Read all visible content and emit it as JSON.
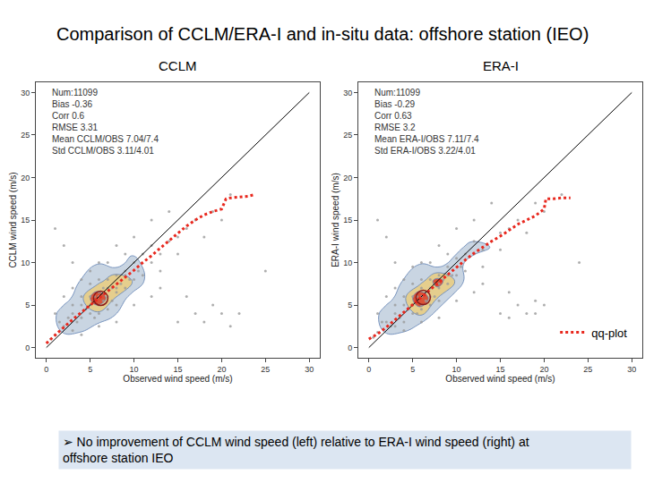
{
  "title": "Comparison of CCLM/ERA-I and in-situ data: offshore station (IEO)",
  "note": [
    "➢ No improvement of CCLM wind speed (left) relative to ERA-I wind speed (right) at",
    "offshore station IEO"
  ],
  "chart_data": [
    {
      "type": "scatter",
      "title": "CCLM",
      "x_label": "Observed wind speed (m/s)",
      "y_label": "CCLM wind speed (m/s)",
      "xlim": [
        -1.2,
        31.2
      ],
      "ylim": [
        -1.2,
        31.2
      ],
      "xticks": [
        0,
        5,
        10,
        15,
        20,
        25,
        30
      ],
      "yticks": [
        0,
        5,
        10,
        15,
        20,
        25,
        30
      ],
      "grid": false,
      "annotations": [
        "Num:11099",
        "Bias -0.36",
        "Corr 0.6",
        "RMSE 3.31",
        "Mean CCLM/OBS 7.04/7.4",
        "Std CCLM/OBS 3.11/4.01"
      ],
      "series": [
        {
          "type": "density_scatter",
          "color": "#9a9a9a",
          "marker": "dot",
          "x": [
            2,
            2.5,
            3,
            3,
            3.5,
            4,
            4,
            4.5,
            5,
            5,
            5.5,
            5.5,
            6,
            6,
            6,
            6.5,
            6.5,
            7,
            7,
            7,
            7.5,
            7.5,
            8,
            8,
            8,
            8.5,
            9,
            9,
            9.5,
            10,
            10,
            10.5,
            11,
            11,
            12,
            12,
            13,
            13,
            14,
            15,
            15,
            16,
            17,
            18,
            1,
            1.5,
            0.5,
            1,
            2,
            3,
            4,
            5,
            6,
            8,
            10,
            12,
            14,
            4,
            6,
            8,
            10,
            12,
            15,
            17,
            18,
            19,
            20,
            21,
            16,
            22,
            2,
            1,
            3,
            20,
            19,
            25,
            21,
            13,
            9,
            7,
            5,
            4,
            3,
            6,
            7,
            8,
            9,
            5,
            6,
            5.5
          ],
          "y": [
            2.5,
            3.5,
            2,
            4,
            3,
            5,
            3.5,
            4.5,
            6,
            4,
            5.5,
            3.5,
            6.5,
            5,
            4,
            7,
            5.5,
            6,
            8,
            4.5,
            7,
            5.5,
            8.5,
            6.5,
            5,
            7.5,
            9,
            7,
            8,
            10,
            8,
            9,
            11,
            8.5,
            10,
            12,
            11,
            9,
            12.5,
            13,
            11,
            14,
            15,
            13,
            1.5,
            3,
            1,
            4,
            6,
            7,
            8,
            9,
            10,
            12,
            13,
            15,
            16,
            1.5,
            2.5,
            3,
            5,
            6,
            3,
            4,
            3,
            5,
            4,
            2.5,
            6,
            4,
            12,
            14,
            10,
            15,
            16,
            9,
            18,
            7,
            11,
            10,
            7.5,
            6,
            5,
            8,
            7,
            7,
            8.5,
            5,
            6,
            6
          ]
        },
        {
          "type": "line",
          "color": "#000000",
          "line_style": "solid",
          "x": [
            0,
            30
          ],
          "y": [
            0,
            30
          ]
        },
        {
          "type": "line",
          "color": "#e8281e",
          "line_style": "dotted",
          "x": [
            0,
            1,
            2,
            3,
            4,
            5,
            6,
            7,
            8,
            9,
            10,
            11,
            12,
            13,
            14,
            15,
            16,
            17,
            18,
            19,
            20,
            20.5,
            21,
            22,
            23,
            23.8
          ],
          "y": [
            0.5,
            1.5,
            2.4,
            3.3,
            4.2,
            5,
            5.8,
            6.6,
            7.5,
            8.3,
            9.1,
            10,
            10.8,
            11.7,
            12.6,
            13.5,
            14.3,
            15,
            15.6,
            16,
            16.3,
            17.5,
            17.6,
            17.7,
            17.8,
            18
          ]
        },
        {
          "type": "circle",
          "color": "#8b1a1a",
          "marker": "circle-open",
          "x": [
            6.2
          ],
          "y": [
            5.8
          ]
        }
      ]
    },
    {
      "type": "scatter",
      "title": "ERA-I",
      "x_label": "Observed wind speed (m/s)",
      "y_label": "ERA-I wind speed (m/s)",
      "xlim": [
        -1.2,
        31.2
      ],
      "ylim": [
        -1.2,
        31.2
      ],
      "xticks": [
        0,
        5,
        10,
        15,
        20,
        25,
        30
      ],
      "yticks": [
        0,
        5,
        10,
        15,
        20,
        25,
        30
      ],
      "grid": false,
      "legend": "lower right",
      "annotations": [
        "Num:11099",
        "Bias -0.29",
        "Corr 0.63",
        "RMSE 3.2",
        "Mean ERA-I/OBS 7.11/7.4",
        "Std ERA-I/OBS 3.22/4.01"
      ],
      "series": [
        {
          "type": "density_scatter",
          "color": "#9a9a9a",
          "marker": "dot",
          "x": [
            2,
            2.5,
            3,
            3,
            3.5,
            4,
            4,
            4.5,
            5,
            5,
            5.5,
            5.5,
            6,
            6,
            6,
            6.5,
            6.5,
            7,
            7,
            7,
            7.5,
            7.5,
            8,
            8,
            8,
            8.5,
            9,
            9,
            9.5,
            10,
            10,
            10.5,
            11,
            11,
            12,
            12,
            13,
            13,
            14,
            15,
            15,
            16,
            17,
            18,
            1,
            1.5,
            0.5,
            1,
            2,
            3,
            4,
            5,
            6,
            8,
            10,
            12,
            14,
            4,
            6,
            8,
            10,
            12,
            15,
            17,
            18,
            19,
            20,
            16,
            2,
            1,
            3,
            20,
            19,
            24,
            22,
            13,
            9,
            7,
            5,
            4,
            3,
            6,
            7,
            8,
            9,
            5,
            6,
            5.5,
            16,
            19
          ],
          "y": [
            3,
            2.5,
            4,
            2.5,
            3.5,
            5,
            3,
            4.5,
            6,
            4,
            5.5,
            4,
            7,
            5,
            4.5,
            6.5,
            5.5,
            6,
            8,
            5,
            7.5,
            6,
            8.5,
            7,
            5.5,
            8,
            9.5,
            7.5,
            8.5,
            10.5,
            8.5,
            9.5,
            11,
            9,
            11,
            12.5,
            11.5,
            9.5,
            12.5,
            13.5,
            11.5,
            14,
            15,
            13.5,
            1.8,
            3,
            1.2,
            4,
            6,
            7,
            8,
            9.5,
            10,
            12,
            14,
            15,
            17,
            2,
            3,
            3.5,
            5.5,
            6.5,
            4,
            5,
            4,
            5.5,
            5,
            6.5,
            13,
            15,
            10,
            16,
            17,
            10,
            18,
            7.5,
            11,
            10,
            7.5,
            6,
            5,
            8,
            7,
            7.5,
            8.5,
            5,
            6,
            6,
            3.5,
            4
          ]
        },
        {
          "type": "line",
          "color": "#000000",
          "line_style": "solid",
          "x": [
            0,
            30
          ],
          "y": [
            0,
            30
          ]
        },
        {
          "type": "line",
          "name": "qq-plot",
          "color": "#e8281e",
          "line_style": "dotted",
          "x": [
            0,
            1,
            2,
            3,
            4,
            5,
            6,
            7,
            8,
            9,
            10,
            11,
            12,
            13,
            14,
            15,
            16,
            17,
            18,
            19,
            20,
            20.2,
            21,
            22,
            23
          ],
          "y": [
            1,
            1.6,
            2.4,
            3.3,
            4.2,
            5,
            5.9,
            6.8,
            7.7,
            8.6,
            9.5,
            10.3,
            11.1,
            11.8,
            12.5,
            13.1,
            13.8,
            14.5,
            15,
            15.5,
            16.3,
            17.5,
            17.5,
            17.6,
            17.6
          ]
        },
        {
          "type": "circle",
          "color": "#8b1a1a",
          "marker": "circle-open",
          "x": [
            6.2
          ],
          "y": [
            5.9
          ]
        }
      ]
    }
  ]
}
